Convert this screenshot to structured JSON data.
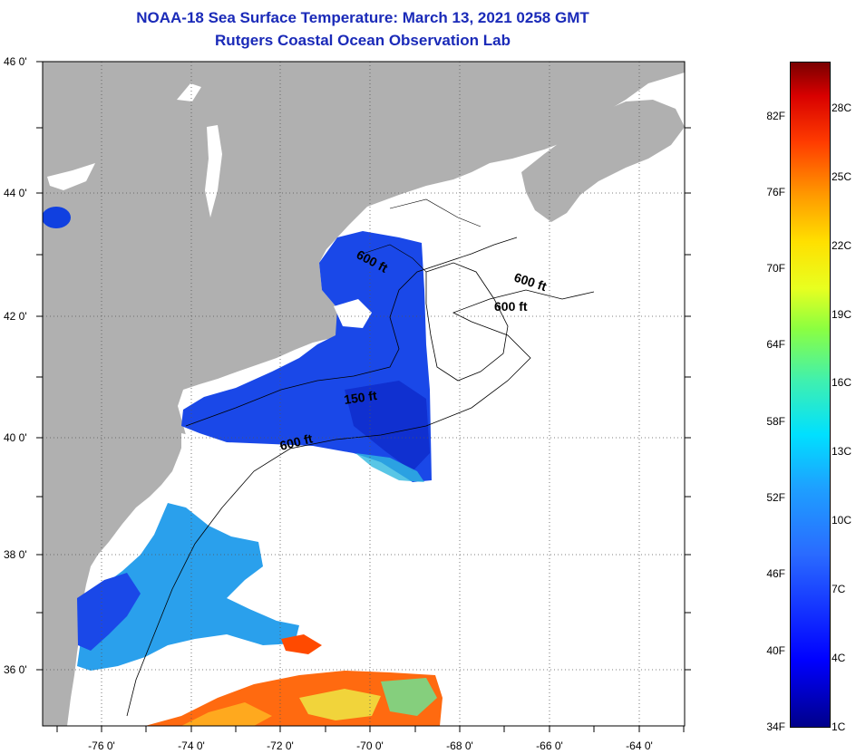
{
  "title": {
    "line1": "NOAA-18 Sea Surface Temperature:  March 13, 2021 0258 GMT",
    "line2": "Rutgers Coastal Ocean Observation Lab"
  },
  "map": {
    "lat_labels": [
      "46 0'",
      "44 0'",
      "42 0'",
      "40 0'",
      "38 0'",
      "36 0'"
    ],
    "lon_labels": [
      "-76 0'",
      "-74 0'",
      "-72 0'",
      "-70 0'",
      "-68 0'",
      "-66 0'",
      "-64 0'"
    ],
    "depth_labels": [
      "600 ft",
      "600 ft",
      "600 ft",
      "150 ft",
      "600 ft"
    ],
    "colors": {
      "land": "#b0b0b0",
      "cloud": "#ffffff",
      "frame": "#000000"
    }
  },
  "colorbar": {
    "fahrenheit": [
      "82F",
      "76F",
      "70F",
      "64F",
      "58F",
      "52F",
      "46F",
      "40F",
      "34F"
    ],
    "celsius": [
      "28C",
      "25C",
      "22C",
      "19C",
      "16C",
      "13C",
      "10C",
      "7C",
      "4C",
      "1C"
    ]
  }
}
